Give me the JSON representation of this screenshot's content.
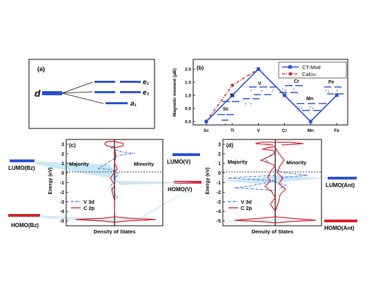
{
  "panel_a": {
    "tag": "(a)",
    "d_label": "d",
    "levels": [
      {
        "label": "e₁",
        "kind": "pair"
      },
      {
        "label": "e₂",
        "kind": "pair"
      },
      {
        "label": "a₁",
        "kind": "single"
      }
    ]
  },
  "dos_c": {
    "tag": "(c)",
    "ylabel": "Energy (eV)",
    "xlabel": "Density of States",
    "majority": "Majority",
    "minority": "Minority",
    "legend": [
      "V 3d",
      "C 2p"
    ],
    "side_labels": {
      "lumo_left": "LUMO(Bz)",
      "homo_left": "HOMO(Bz)",
      "lumo_right": "LUMO(V)",
      "homo_right": "HOMO(V)"
    }
  },
  "dos_d": {
    "tag": "(d)",
    "ylabel": "Energy (eV)",
    "xlabel": "Density of States",
    "majority": "Majority",
    "minority": "Minority",
    "legend": [
      "V 3d",
      "C 2p"
    ],
    "side_labels": {
      "lumo_right": "LUMO(Ant)",
      "homo_right": "HOMO(Ant)"
    }
  },
  "chart_data": [
    {
      "type": "line",
      "panel": "(b)",
      "ylabel": "Magnetic moment (μB)",
      "categories": [
        "Sc",
        "Ti",
        "V",
        "Cr",
        "Mn",
        "Fe"
      ],
      "yticks": [
        "0.0",
        "0.5",
        "1.0",
        "1.5",
        "2.0"
      ],
      "ylim": [
        0,
        2.0
      ],
      "legend_position": "top-right",
      "series": [
        {
          "name": "CT-Mod",
          "color": "#2a4fd6",
          "values": [
            0.0,
            1.0,
            2.0,
            1.0,
            0.0,
            1.0
          ]
        },
        {
          "name": "Calcu",
          "color": "#d8202a",
          "values": [
            0.0,
            1.38,
            2.0,
            1.0,
            0.0,
            1.0
          ]
        }
      ],
      "annotations": [
        "Sc",
        "Ti",
        "V",
        "Cr",
        "Mn",
        "Fe"
      ]
    },
    {
      "type": "line",
      "panel": "(c)",
      "ylabel": "Energy (eV)",
      "xlabel": "Density of States",
      "ylim": [
        -5.5,
        3.5
      ],
      "yticks": [
        "3",
        "2",
        "1",
        "0",
        "-1",
        "-2",
        "-3",
        "-4",
        "-5"
      ]
    },
    {
      "type": "line",
      "panel": "(d)",
      "ylabel": "Energy (eV)",
      "xlabel": "Density of States",
      "ylim": [
        -5.5,
        3.5
      ],
      "yticks": [
        "3",
        "2",
        "1",
        "0",
        "-1",
        "-2",
        "-3",
        "-4",
        "-5"
      ]
    }
  ]
}
